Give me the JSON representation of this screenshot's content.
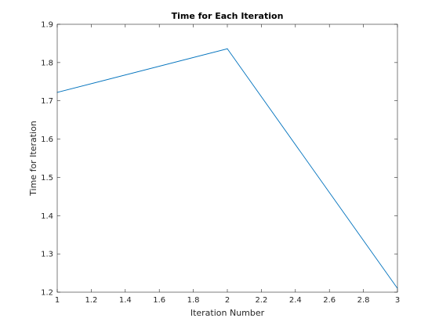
{
  "chart_data": {
    "type": "line",
    "title": "Time for Each Iteration",
    "xlabel": "Iteration Number",
    "ylabel": "Time for Iteration",
    "xlim": [
      1,
      3
    ],
    "ylim": [
      1.2,
      1.9
    ],
    "xticks": [
      "1",
      "1.2",
      "1.4",
      "1.6",
      "1.8",
      "2",
      "2.2",
      "2.4",
      "2.6",
      "2.8",
      "3"
    ],
    "yticks": [
      "1.2",
      "1.3",
      "1.4",
      "1.5",
      "1.6",
      "1.7",
      "1.8",
      "1.9"
    ],
    "grid": false,
    "series": [
      {
        "x": [
          1,
          2,
          3
        ],
        "y": [
          1.722,
          1.836,
          1.21
        ],
        "color": "#0072BD"
      }
    ]
  }
}
